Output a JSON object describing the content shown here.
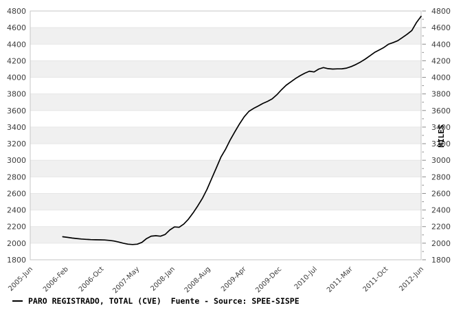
{
  "chart_data": {
    "type": "line",
    "title": "",
    "legend_text": "PARO REGISTRADO, TOTAL (CVE)  Fuente - Source: SPEE-SISPE",
    "right_axis_label": "MILES",
    "ylim": [
      1800,
      4800
    ],
    "ytick_step": 200,
    "ytick_minor_step": 100,
    "xtick_labels": [
      "2005-Jun",
      "2006-Feb",
      "2006-Oct",
      "2007-May",
      "2008-Jan",
      "2008-Aug",
      "2009-Apr",
      "2009-Dec",
      "2010-Jul",
      "2011-Mar",
      "2011-Oct",
      "2012-Jun"
    ],
    "x_range_months": 84,
    "series": [
      {
        "name": "PARO REGISTRADO, TOTAL (CVE)",
        "start": "2006-Jan",
        "freq": "monthly",
        "start_offset_months": 7,
        "values": [
          2078,
          2070,
          2062,
          2056,
          2050,
          2046,
          2043,
          2041,
          2040,
          2039,
          2034,
          2026,
          2014,
          2000,
          1988,
          1984,
          1988,
          2010,
          2055,
          2085,
          2090,
          2084,
          2105,
          2160,
          2196,
          2192,
          2230,
          2290,
          2365,
          2450,
          2540,
          2650,
          2780,
          2910,
          3040,
          3135,
          3248,
          3345,
          3440,
          3525,
          3590,
          3625,
          3655,
          3685,
          3710,
          3740,
          3790,
          3850,
          3905,
          3945,
          3985,
          4020,
          4050,
          4074,
          4065,
          4100,
          4118,
          4105,
          4100,
          4102,
          4103,
          4111,
          4130,
          4155,
          4185,
          4220,
          4260,
          4300,
          4330,
          4360,
          4400,
          4420,
          4442,
          4480,
          4520,
          4565,
          4660,
          4735
        ]
      }
    ],
    "legend_position": "bottom-left",
    "grid": "horizontal",
    "colors": {
      "line": "#000000",
      "band": "#f0f0f0",
      "grid": "#e6e6e6",
      "border": "#c6c6c6",
      "axis_text": "#3c3c3c",
      "tick": "#8a8a8a"
    }
  }
}
